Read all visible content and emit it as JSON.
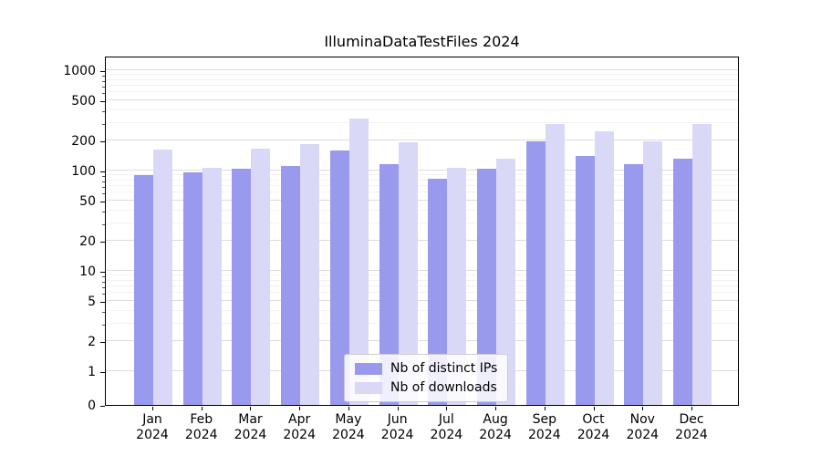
{
  "chart_data": {
    "type": "bar",
    "title": "IlluminaDataTestFiles 2024",
    "categories": [
      "Jan 2024",
      "Feb 2024",
      "Mar 2024",
      "Apr 2024",
      "May 2024",
      "Jun 2024",
      "Jul 2024",
      "Aug 2024",
      "Sep 2024",
      "Oct 2024",
      "Nov 2024",
      "Dec 2024"
    ],
    "series": [
      {
        "name": "Nb of distinct IPs",
        "color": "#9999ee",
        "values": [
          90,
          95,
          105,
          112,
          160,
          115,
          82,
          105,
          195,
          140,
          117,
          132
        ]
      },
      {
        "name": "Nb of downloads",
        "color": "#d9d8f7",
        "values": [
          163,
          106,
          165,
          185,
          330,
          190,
          106,
          131,
          290,
          248,
          195,
          290
        ]
      }
    ],
    "yscale": "symlog",
    "yticks": [
      0,
      1,
      2,
      5,
      10,
      20,
      50,
      100,
      200,
      500,
      1000
    ],
    "ylim": [
      0,
      1400
    ],
    "grid": true,
    "legend_position": "lower center",
    "grid_major_color": "#dcdcdc",
    "grid_minor_color": "#f2f2f2"
  }
}
